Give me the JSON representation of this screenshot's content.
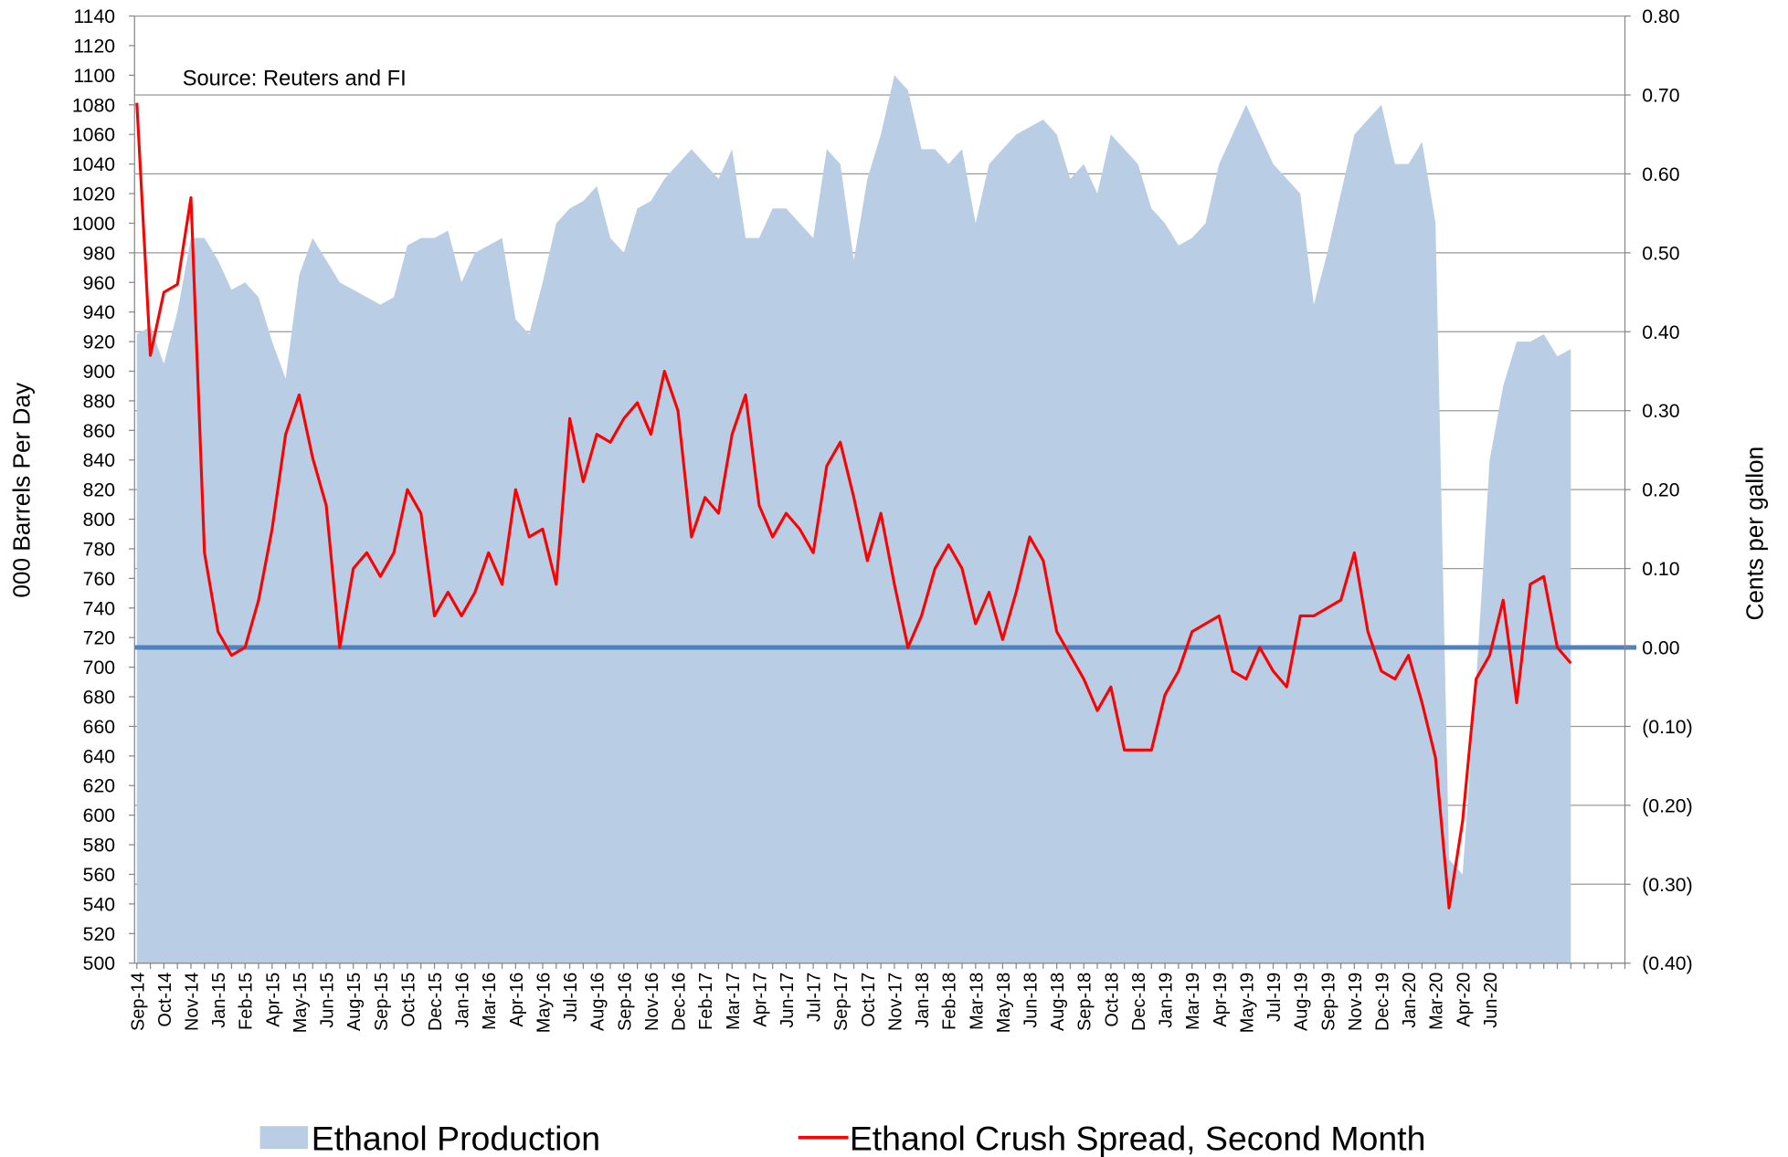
{
  "chart_data": {
    "type": "combo",
    "annotation": "Source: Reuters and FI",
    "ylabel": "000 Barrels Per Day",
    "y2label": "Cents per gallon",
    "ylim": [
      500,
      1140
    ],
    "yticks": [
      500,
      520,
      540,
      560,
      580,
      600,
      620,
      640,
      660,
      680,
      700,
      720,
      740,
      760,
      780,
      800,
      820,
      840,
      860,
      880,
      900,
      920,
      940,
      960,
      980,
      1000,
      1020,
      1040,
      1060,
      1080,
      1100,
      1120,
      1140
    ],
    "y2lim": [
      -0.4,
      0.8
    ],
    "y2ticks": [
      {
        "value": -0.4,
        "label": "(0.40)"
      },
      {
        "value": -0.3,
        "label": "(0.30)"
      },
      {
        "value": -0.2,
        "label": "(0.20)"
      },
      {
        "value": -0.1,
        "label": "(0.10)"
      },
      {
        "value": 0,
        "label": "0.00"
      },
      {
        "value": 0.1,
        "label": "0.10"
      },
      {
        "value": 0.2,
        "label": "0.20"
      },
      {
        "value": 0.3,
        "label": "0.30"
      },
      {
        "value": 0.4,
        "label": "0.40"
      },
      {
        "value": 0.5,
        "label": "0.50"
      },
      {
        "value": 0.6,
        "label": "0.60"
      },
      {
        "value": 0.7,
        "label": "0.70"
      },
      {
        "value": 0.8,
        "label": "0.80"
      }
    ],
    "negative_tick_color": "#ff0000",
    "zero_line_color": "#4f81bd",
    "grid": "y2",
    "legend": "bottom",
    "categories": [
      "Sep-14",
      null,
      "Oct-14",
      null,
      "Nov-14",
      null,
      "Jan-15",
      null,
      "Feb-15",
      null,
      "Apr-15",
      null,
      "May-15",
      null,
      "Jun-15",
      null,
      "Aug-15",
      null,
      "Sep-15",
      null,
      "Oct-15",
      null,
      "Dec-15",
      null,
      "Jan-16",
      null,
      "Mar-16",
      null,
      "Apr-16",
      null,
      "May-16",
      null,
      "Jul-16",
      null,
      "Aug-16",
      null,
      "Sep-16",
      null,
      "Nov-16",
      null,
      "Dec-16",
      null,
      "Feb-17",
      null,
      "Mar-17",
      null,
      "Apr-17",
      null,
      "Jun-17",
      null,
      "Jul-17",
      null,
      "Sep-17",
      null,
      "Oct-17",
      null,
      "Nov-17",
      null,
      "Jan-18",
      null,
      "Feb-18",
      null,
      "Mar-18",
      null,
      "May-18",
      null,
      "Jun-18",
      null,
      "Aug-18",
      null,
      "Sep-18",
      null,
      "Oct-18",
      null,
      "Dec-18",
      null,
      "Jan-19",
      null,
      "Mar-19",
      null,
      "Apr-19",
      null,
      "May-19",
      null,
      "Jul-19",
      null,
      "Aug-19",
      null,
      "Sep-19",
      null,
      "Nov-19",
      null,
      "Dec-19",
      null,
      "Jan-20",
      null,
      "Mar-20",
      null,
      "Apr-20",
      null,
      "Jun-20",
      null,
      null,
      null,
      null,
      null,
      null,
      null,
      null,
      null,
      null
    ],
    "series": [
      {
        "name": "Ethanol Production",
        "type": "area",
        "color": "#b9cde5",
        "values": [
          925,
          930,
          905,
          940,
          990,
          990,
          975,
          955,
          960,
          950,
          920,
          895,
          965,
          990,
          975,
          960,
          955,
          950,
          945,
          950,
          985,
          990,
          990,
          995,
          960,
          980,
          985,
          990,
          935,
          925,
          960,
          1000,
          1010,
          1015,
          1025,
          990,
          980,
          1010,
          1015,
          1030,
          1040,
          1050,
          1040,
          1030,
          1050,
          990,
          990,
          1010,
          1010,
          1000,
          990,
          1050,
          1040,
          975,
          1030,
          1060,
          1100,
          1090,
          1050,
          1050,
          1040,
          1050,
          1000,
          1040,
          1050,
          1060,
          1065,
          1070,
          1060,
          1030,
          1040,
          1020,
          1060,
          1050,
          1040,
          1010,
          1000,
          985,
          990,
          1000,
          1040,
          1060,
          1080,
          1060,
          1040,
          1030,
          1020,
          945,
          980,
          1020,
          1060,
          1070,
          1080,
          1040,
          1040,
          1055,
          1000,
          570,
          560,
          690,
          840,
          890,
          920,
          920,
          925,
          910,
          915,
          null,
          null,
          null,
          null
        ]
      },
      {
        "name": "Ethanol Crush Spread, Second Month",
        "type": "line",
        "axis": "y2",
        "color": "#ff0000",
        "values": [
          0.69,
          0.37,
          0.45,
          0.46,
          0.57,
          0.12,
          0.02,
          -0.01,
          0.0,
          0.06,
          0.15,
          0.27,
          0.32,
          0.24,
          0.18,
          0.0,
          0.1,
          0.12,
          0.09,
          0.12,
          0.2,
          0.17,
          0.04,
          0.07,
          0.04,
          0.07,
          0.12,
          0.08,
          0.2,
          0.14,
          0.15,
          0.08,
          0.29,
          0.21,
          0.27,
          0.26,
          0.29,
          0.31,
          0.27,
          0.35,
          0.3,
          0.14,
          0.19,
          0.17,
          0.27,
          0.32,
          0.18,
          0.14,
          0.17,
          0.15,
          0.12,
          0.23,
          0.26,
          0.19,
          0.11,
          0.17,
          0.08,
          0.0,
          0.04,
          0.1,
          0.13,
          0.1,
          0.03,
          0.07,
          0.01,
          0.07,
          0.14,
          0.11,
          0.02,
          -0.01,
          -0.04,
          -0.08,
          -0.05,
          -0.13,
          -0.13,
          -0.13,
          -0.06,
          -0.03,
          0.02,
          0.03,
          0.04,
          -0.03,
          -0.04,
          0.0,
          -0.03,
          -0.05,
          0.04,
          0.04,
          0.05,
          0.06,
          0.12,
          0.02,
          -0.03,
          -0.04,
          -0.01,
          -0.07,
          -0.14,
          -0.33,
          -0.22,
          -0.04,
          -0.01,
          0.06,
          -0.07,
          0.08,
          0.09,
          0.0,
          -0.02,
          null,
          null,
          null,
          null
        ]
      }
    ]
  }
}
